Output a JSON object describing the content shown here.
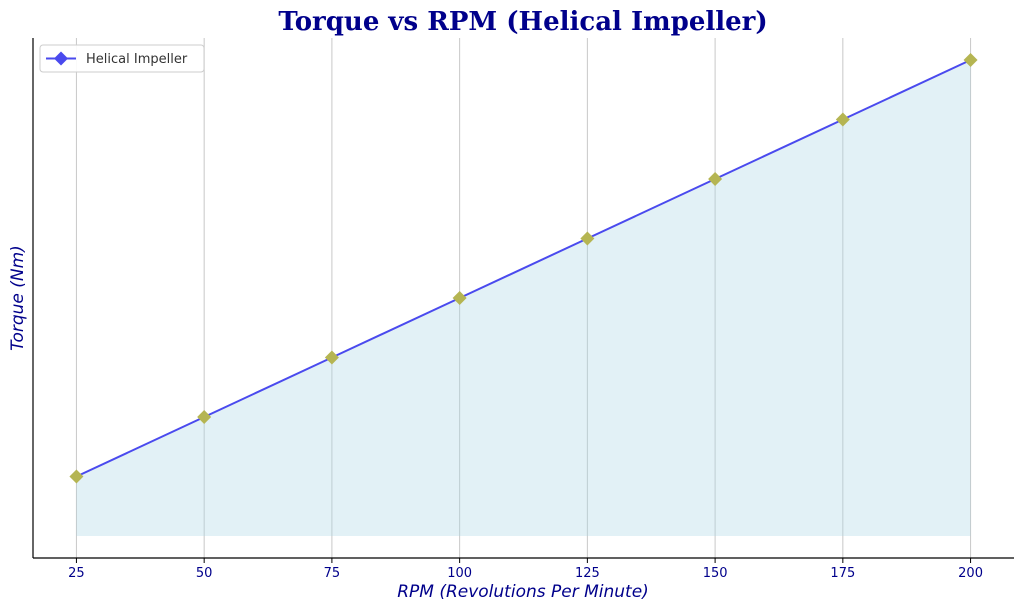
{
  "chart_data": {
    "type": "area",
    "title": "Torque vs RPM (Helical Impeller)",
    "xlabel": "RPM (Revolutions Per Minute)",
    "ylabel": "Torque (Nm)",
    "x": [
      25,
      50,
      75,
      100,
      125,
      150,
      175,
      200
    ],
    "x_ticks": [
      25,
      50,
      75,
      100,
      125,
      150,
      175,
      200
    ],
    "series": [
      {
        "name": "Helical Impeller",
        "values": [
          1,
          2,
          3,
          4,
          5,
          6,
          7,
          8
        ],
        "marker": "diamond",
        "line_color": "#4a4aee",
        "marker_color": "#b5b552",
        "fill_color": "#add8e6"
      }
    ],
    "xlim": [
      16.5,
      208.5
    ],
    "ylim": [
      -0.37,
      8.37
    ],
    "y_ticks_visible": false,
    "fill_baseline": 0,
    "grid": "vertical",
    "legend_position": "top-left"
  }
}
